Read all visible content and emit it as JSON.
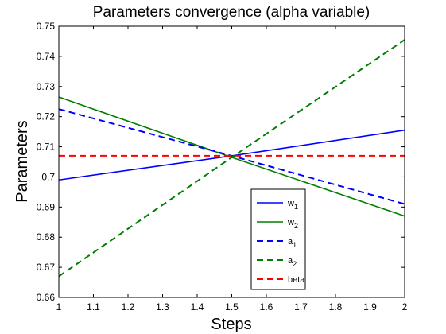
{
  "chart_data": {
    "type": "line",
    "title": "Parameters convergence (alpha variable)",
    "xlabel": "Steps",
    "ylabel": "Parameters",
    "xlim": [
      1,
      2
    ],
    "ylim": [
      0.66,
      0.75
    ],
    "xticks": [
      "1",
      "1.1",
      "1.2",
      "1.3",
      "1.4",
      "1.5",
      "1.6",
      "1.7",
      "1.8",
      "1.9",
      "2"
    ],
    "yticks": [
      "0.66",
      "0.67",
      "0.68",
      "0.69",
      "0.7",
      "0.71",
      "0.72",
      "0.73",
      "0.74",
      "0.75"
    ],
    "grid": false,
    "legend_position": "bottom-center",
    "series": [
      {
        "name": "w",
        "sub": "1",
        "color": "#0000ff",
        "dash": "solid",
        "x": [
          1,
          1.5,
          2
        ],
        "y": [
          0.699,
          0.707,
          0.7155
        ]
      },
      {
        "name": "w",
        "sub": "2",
        "color": "#007f00",
        "dash": "solid",
        "x": [
          1,
          1.5,
          2
        ],
        "y": [
          0.7265,
          0.7065,
          0.687
        ]
      },
      {
        "name": "a",
        "sub": "1",
        "color": "#0000ff",
        "dash": "dashed",
        "x": [
          1,
          1.5,
          2
        ],
        "y": [
          0.7225,
          0.707,
          0.691
        ]
      },
      {
        "name": "a",
        "sub": "2",
        "color": "#007f00",
        "dash": "dashed",
        "x": [
          1,
          1.5,
          2
        ],
        "y": [
          0.667,
          0.7065,
          0.7455
        ]
      },
      {
        "name": "beta",
        "sub": "",
        "color": "#ff0000",
        "dash": "dashed",
        "x": [
          1,
          1.5,
          2
        ],
        "y": [
          0.707,
          0.707,
          0.707
        ]
      }
    ]
  }
}
